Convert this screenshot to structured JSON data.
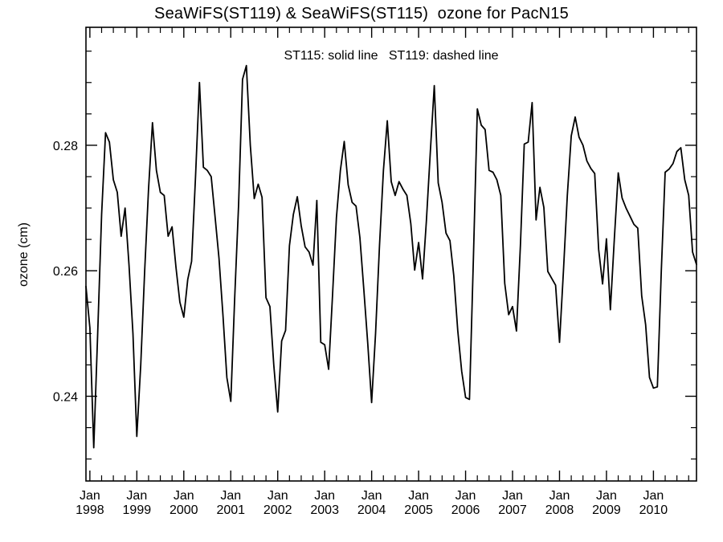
{
  "page": {
    "background": "#ffffff"
  },
  "header": {
    "title": "SeaWiFS(ST119) & SeaWiFS(ST115)  ozone for PacN15"
  },
  "chart_data": {
    "type": "line",
    "title": "SeaWiFS(ST119) & SeaWiFS(ST115)  ozone for PacN15",
    "annotation": "ST115: solid line   ST119: dashed line",
    "xlabel": "",
    "ylabel": "ozone (cm)",
    "ylim": [
      0.2265,
      0.2988
    ],
    "y_ticks": [
      0.24,
      0.26,
      0.28
    ],
    "y_minor_step": 0.005,
    "y_minor_range": [
      0.23,
      0.295
    ],
    "grid": false,
    "frame_color": "#000000",
    "line_color": "#000000",
    "x_start": "1997-12",
    "x_end": "2010-12",
    "x_major_tick_month": "Jan",
    "x_minor_tick_months": [
      "Apr",
      "Jul",
      "Oct"
    ],
    "x_tick_labels": [
      {
        "month": "Jan",
        "year": "1998"
      },
      {
        "month": "Jan",
        "year": "1999"
      },
      {
        "month": "Jan",
        "year": "2000"
      },
      {
        "month": "Jan",
        "year": "2001"
      },
      {
        "month": "Jan",
        "year": "2002"
      },
      {
        "month": "Jan",
        "year": "2003"
      },
      {
        "month": "Jan",
        "year": "2004"
      },
      {
        "month": "Jan",
        "year": "2005"
      },
      {
        "month": "Jan",
        "year": "2006"
      },
      {
        "month": "Jan",
        "year": "2007"
      },
      {
        "month": "Jan",
        "year": "2008"
      },
      {
        "month": "Jan",
        "year": "2009"
      },
      {
        "month": "Jan",
        "year": "2010"
      }
    ],
    "series": [
      {
        "name": "ST115",
        "style": "solid",
        "color": "#000000",
        "first_month": "1997-12",
        "monthly_values": [
          0.2575,
          0.2509,
          0.2318,
          0.25,
          0.269,
          0.282,
          0.2805,
          0.2745,
          0.2725,
          0.2655,
          0.27,
          0.2609,
          0.25,
          0.2336,
          0.245,
          0.26,
          0.273,
          0.2836,
          0.276,
          0.2725,
          0.272,
          0.2655,
          0.267,
          0.2605,
          0.255,
          0.2526,
          0.2586,
          0.2615,
          0.275,
          0.29,
          0.2765,
          0.276,
          0.275,
          0.2685,
          0.262,
          0.253,
          0.243,
          0.2392,
          0.2555,
          0.2705,
          0.2905,
          0.2927,
          0.28,
          0.2715,
          0.2738,
          0.2717,
          0.2557,
          0.2543,
          0.245,
          0.2375,
          0.2488,
          0.2505,
          0.264,
          0.269,
          0.2718,
          0.2672,
          0.2638,
          0.263,
          0.2609,
          0.2712,
          0.2486,
          0.2482,
          0.2443,
          0.256,
          0.2685,
          0.276,
          0.2806,
          0.2737,
          0.2709,
          0.2703,
          0.2653,
          0.257,
          0.2484,
          0.239,
          0.25,
          0.264,
          0.276,
          0.2839,
          0.2742,
          0.272,
          0.2742,
          0.273,
          0.272,
          0.2675,
          0.2601,
          0.2645,
          0.2587,
          0.268,
          0.279,
          0.2895,
          0.274,
          0.2709,
          0.266,
          0.2648,
          0.2592,
          0.2505,
          0.244,
          0.2398,
          0.2395,
          0.262,
          0.2858,
          0.2832,
          0.2825,
          0.276,
          0.2757,
          0.2745,
          0.272,
          0.258,
          0.253,
          0.2543,
          0.2504,
          0.264,
          0.2802,
          0.2805,
          0.2868,
          0.2681,
          0.2733,
          0.2701,
          0.2599,
          0.2588,
          0.2577,
          0.2486,
          0.26,
          0.272,
          0.2815,
          0.2845,
          0.2813,
          0.28,
          0.2775,
          0.2763,
          0.2755,
          0.2634,
          0.2579,
          0.2651,
          0.2538,
          0.265,
          0.2756,
          0.2716,
          0.27,
          0.2687,
          0.2674,
          0.2668,
          0.256,
          0.2514,
          0.243,
          0.2413,
          0.2415,
          0.26,
          0.2757,
          0.2762,
          0.2771,
          0.279,
          0.2796,
          0.2745,
          0.272,
          0.263,
          0.261
        ]
      }
    ]
  }
}
